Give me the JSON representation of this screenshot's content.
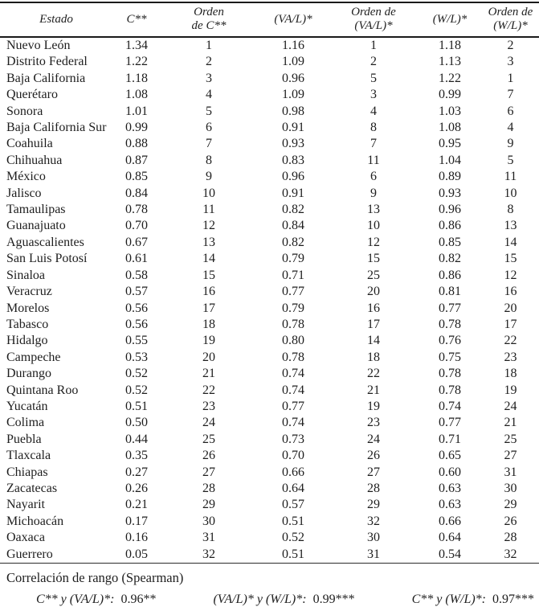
{
  "table": {
    "header": [
      {
        "lines": [
          "Estado"
        ]
      },
      {
        "lines": [
          "C**"
        ]
      },
      {
        "lines": [
          "Orden",
          "de C**"
        ]
      },
      {
        "lines": [
          "(VA/L)*"
        ]
      },
      {
        "lines": [
          "Orden de",
          "(VA/L)*"
        ]
      },
      {
        "lines": [
          "(W/L)*"
        ]
      },
      {
        "lines": [
          "Orden de",
          "(W/L)*"
        ]
      }
    ],
    "rows": [
      [
        "Nuevo León",
        "1.34",
        "1",
        "1.16",
        "1",
        "1.18",
        "2"
      ],
      [
        "Distrito Federal",
        "1.22",
        "2",
        "1.09",
        "2",
        "1.13",
        "3"
      ],
      [
        "Baja California",
        "1.18",
        "3",
        "0.96",
        "5",
        "1.22",
        "1"
      ],
      [
        "Querétaro",
        "1.08",
        "4",
        "1.09",
        "3",
        "0.99",
        "7"
      ],
      [
        "Sonora",
        "1.01",
        "5",
        "0.98",
        "4",
        "1.03",
        "6"
      ],
      [
        "Baja California Sur",
        "0.99",
        "6",
        "0.91",
        "8",
        "1.08",
        "4"
      ],
      [
        "Coahuila",
        "0.88",
        "7",
        "0.93",
        "7",
        "0.95",
        "9"
      ],
      [
        "Chihuahua",
        "0.87",
        "8",
        "0.83",
        "11",
        "1.04",
        "5"
      ],
      [
        "México",
        "0.85",
        "9",
        "0.96",
        "6",
        "0.89",
        "11"
      ],
      [
        "Jalisco",
        "0.84",
        "10",
        "0.91",
        "9",
        "0.93",
        "10"
      ],
      [
        "Tamaulipas",
        "0.78",
        "11",
        "0.82",
        "13",
        "0.96",
        "8"
      ],
      [
        "Guanajuato",
        "0.70",
        "12",
        "0.84",
        "10",
        "0.86",
        "13"
      ],
      [
        "Aguascalientes",
        "0.67",
        "13",
        "0.82",
        "12",
        "0.85",
        "14"
      ],
      [
        "San Luis Potosí",
        "0.61",
        "14",
        "0.79",
        "15",
        "0.82",
        "15"
      ],
      [
        "Sinaloa",
        "0.58",
        "15",
        "0.71",
        "25",
        "0.86",
        "12"
      ],
      [
        "Veracruz",
        "0.57",
        "16",
        "0.77",
        "20",
        "0.81",
        "16"
      ],
      [
        "Morelos",
        "0.56",
        "17",
        "0.79",
        "16",
        "0.77",
        "20"
      ],
      [
        "Tabasco",
        "0.56",
        "18",
        "0.78",
        "17",
        "0.78",
        "17"
      ],
      [
        "Hidalgo",
        "0.55",
        "19",
        "0.80",
        "14",
        "0.76",
        "22"
      ],
      [
        "Campeche",
        "0.53",
        "20",
        "0.78",
        "18",
        "0.75",
        "23"
      ],
      [
        "Durango",
        "0.52",
        "21",
        "0.74",
        "22",
        "0.78",
        "18"
      ],
      [
        "Quintana Roo",
        "0.52",
        "22",
        "0.74",
        "21",
        "0.78",
        "19"
      ],
      [
        "Yucatán",
        "0.51",
        "23",
        "0.77",
        "19",
        "0.74",
        "24"
      ],
      [
        "Colima",
        "0.50",
        "24",
        "0.74",
        "23",
        "0.77",
        "21"
      ],
      [
        "Puebla",
        "0.44",
        "25",
        "0.73",
        "24",
        "0.71",
        "25"
      ],
      [
        "Tlaxcala",
        "0.35",
        "26",
        "0.70",
        "26",
        "0.65",
        "27"
      ],
      [
        "Chiapas",
        "0.27",
        "27",
        "0.66",
        "27",
        "0.60",
        "31"
      ],
      [
        "Zacatecas",
        "0.26",
        "28",
        "0.64",
        "28",
        "0.63",
        "30"
      ],
      [
        "Nayarit",
        "0.21",
        "29",
        "0.57",
        "29",
        "0.63",
        "29"
      ],
      [
        "Michoacán",
        "0.17",
        "30",
        "0.51",
        "32",
        "0.66",
        "26"
      ],
      [
        "Oaxaca",
        "0.16",
        "31",
        "0.52",
        "30",
        "0.64",
        "28"
      ],
      [
        "Guerrero",
        "0.05",
        "32",
        "0.51",
        "31",
        "0.54",
        "32"
      ]
    ]
  },
  "footer": {
    "title": "Correlación de rango (Spearman)",
    "correlations": [
      {
        "label": "C** y (VA/L)*:",
        "value": "0.96**"
      },
      {
        "label": "(VA/L)* y (W/L)*:",
        "value": "0.99***"
      },
      {
        "label": "C** y (W/L)*:",
        "value": "0.97***"
      }
    ]
  },
  "colors": {
    "text": "#1e1e1e",
    "rule_heavy": "#1a1a1a",
    "rule_light": "#2b2b2b",
    "background": "#ffffff"
  }
}
